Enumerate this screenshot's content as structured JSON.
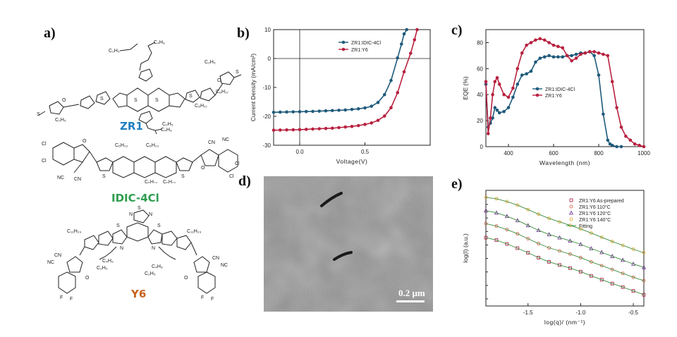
{
  "panels": {
    "a": {
      "label": "a)",
      "molecules": [
        {
          "name": "ZR1",
          "color": "#1f7fc0"
        },
        {
          "name": "IDIC-4Cl",
          "color": "#2e9e4f"
        },
        {
          "name": "Y6",
          "color": "#c8621e"
        }
      ],
      "atom_labels": {
        "zr1": [
          "C4H9",
          "C2H5",
          "S",
          "S",
          "S",
          "S",
          "S",
          "S",
          "S",
          "S",
          "S",
          "S",
          "S",
          "S",
          "O",
          "N",
          "C2H5",
          "C8H17",
          "C8H17",
          "C4H9",
          "C2H5",
          "S",
          "N",
          "C2H5",
          "O"
        ],
        "idic": [
          "Cl",
          "Cl",
          "O",
          "C6H13",
          "C6H13",
          "S",
          "S",
          "NC",
          "CN",
          "CN",
          "NC",
          "O",
          "Cl",
          "Cl",
          "C6H13",
          "C6H13"
        ],
        "y6": [
          "S",
          "N",
          "N",
          "S",
          "S",
          "S",
          "S",
          "C11H23",
          "C11H23",
          "N",
          "N",
          "C4H9",
          "C2H5",
          "C4H9",
          "C2H5",
          "NC",
          "CN",
          "CN",
          "NC",
          "O",
          "O",
          "F",
          "F",
          "F",
          "F"
        ]
      }
    },
    "b": {
      "label": "b)"
    },
    "c": {
      "label": "c)"
    },
    "d": {
      "label": "d)",
      "scale_bar": "0.2 μm"
    },
    "e": {
      "label": "e)"
    }
  },
  "chart_data": [
    {
      "id": "b",
      "type": "line",
      "xlabel": "Voltage(V)",
      "ylabel": "Current Density (mA/cm²)",
      "xlim": [
        -0.2,
        1.0
      ],
      "ylim": [
        -30,
        10
      ],
      "xticks": [
        {
          "v": 0.0,
          "t": "0.0"
        },
        {
          "v": 0.5,
          "t": "0.5"
        }
      ],
      "yticks": [
        {
          "v": 10,
          "t": "10"
        },
        {
          "v": 0,
          "t": "0"
        },
        {
          "v": -10,
          "t": "-10"
        },
        {
          "v": -20,
          "t": "-20"
        },
        {
          "v": -30,
          "t": "-30"
        }
      ],
      "zero_lines": true,
      "legend_position": "top",
      "series": [
        {
          "name": "ZR1:IDIC-4Cl",
          "color": "#1f5a7a",
          "marker": "circle",
          "x": [
            -0.2,
            -0.15,
            -0.1,
            -0.05,
            0.0,
            0.05,
            0.1,
            0.15,
            0.2,
            0.25,
            0.3,
            0.35,
            0.4,
            0.45,
            0.5,
            0.55,
            0.6,
            0.65,
            0.7,
            0.75,
            0.78,
            0.8,
            0.82
          ],
          "y": [
            -18.6,
            -18.55,
            -18.5,
            -18.45,
            -18.4,
            -18.35,
            -18.3,
            -18.2,
            -18.1,
            -18.0,
            -17.9,
            -17.8,
            -17.6,
            -17.4,
            -17.1,
            -16.5,
            -15.2,
            -12.5,
            -7.6,
            0.2,
            5.0,
            8.5,
            10
          ]
        },
        {
          "name": "ZR1:Y6",
          "color": "#b8213f",
          "marker": "circle",
          "x": [
            -0.2,
            -0.15,
            -0.1,
            -0.05,
            0.0,
            0.05,
            0.1,
            0.15,
            0.2,
            0.25,
            0.3,
            0.35,
            0.4,
            0.45,
            0.5,
            0.55,
            0.6,
            0.65,
            0.7,
            0.75,
            0.8,
            0.85,
            0.88,
            0.9
          ],
          "y": [
            -24.8,
            -24.75,
            -24.7,
            -24.65,
            -24.6,
            -24.5,
            -24.4,
            -24.3,
            -24.2,
            -24.1,
            -23.9,
            -23.7,
            -23.5,
            -23.2,
            -22.8,
            -22.3,
            -21.4,
            -19.9,
            -17.0,
            -11.8,
            -4.6,
            1.8,
            6.5,
            10
          ]
        }
      ]
    },
    {
      "id": "c",
      "type": "line",
      "xlabel": "Wavelength (nm)",
      "ylabel": "EQE (%)",
      "xlim": [
        300,
        1000
      ],
      "ylim": [
        0,
        90
      ],
      "xticks": [
        {
          "v": 400,
          "t": "400"
        },
        {
          "v": 600,
          "t": "600"
        },
        {
          "v": 800,
          "t": "800"
        },
        {
          "v": 1000,
          "t": "1000"
        }
      ],
      "yticks": [
        {
          "v": 0,
          "t": "0"
        },
        {
          "v": 20,
          "t": "20"
        },
        {
          "v": 40,
          "t": "40"
        },
        {
          "v": 60,
          "t": "60"
        },
        {
          "v": 80,
          "t": "80"
        }
      ],
      "legend_position": "middle-left",
      "series": [
        {
          "name": "ZR1:IDIC-4Cl",
          "color": "#1f5a7a",
          "marker": "circle",
          "x": [
            300,
            310,
            320,
            330,
            340,
            350,
            360,
            380,
            400,
            420,
            440,
            460,
            480,
            500,
            520,
            540,
            560,
            580,
            600,
            620,
            640,
            660,
            680,
            700,
            720,
            740,
            760,
            780,
            800,
            820,
            840,
            850,
            860,
            880,
            900
          ],
          "y": [
            48,
            15,
            18,
            22,
            30,
            28,
            26,
            27,
            30,
            38,
            48,
            55,
            56,
            58,
            65,
            68,
            69,
            70,
            69,
            69,
            69,
            70,
            70,
            71,
            72,
            72,
            73,
            70,
            55,
            25,
            5,
            2,
            1,
            0,
            0
          ]
        },
        {
          "name": "ZR1:Y6",
          "color": "#b8213f",
          "marker": "circle",
          "x": [
            300,
            310,
            320,
            330,
            340,
            350,
            360,
            380,
            400,
            420,
            440,
            460,
            480,
            500,
            520,
            540,
            560,
            580,
            600,
            620,
            640,
            660,
            680,
            700,
            720,
            740,
            760,
            780,
            800,
            820,
            840,
            860,
            880,
            900,
            920,
            940,
            960,
            980,
            1000
          ],
          "y": [
            50,
            10,
            22,
            40,
            50,
            53,
            48,
            40,
            38,
            45,
            60,
            72,
            78,
            80,
            82,
            83,
            82,
            80,
            78,
            77,
            76,
            70,
            66,
            68,
            71,
            72,
            73,
            73,
            72,
            71,
            70,
            50,
            30,
            15,
            8,
            5,
            2,
            1,
            0
          ]
        }
      ]
    },
    {
      "id": "e",
      "type": "scatter",
      "xlabel": "log(q)/ (nm⁻¹)",
      "ylabel": "log(I) (a.u.)",
      "xlim": [
        -1.9,
        -0.4
      ],
      "xticks": [
        {
          "v": -1.5,
          "t": "-1.5"
        },
        {
          "v": -1.0,
          "t": "-1.0"
        },
        {
          "v": -0.5,
          "t": "-0.5"
        }
      ],
      "legend_position": "top-right",
      "series": [
        {
          "name": "ZR1:Y6 As-prepared",
          "color": "#a8123a",
          "marker": "square",
          "x": [
            -1.9,
            -1.8,
            -1.7,
            -1.6,
            -1.5,
            -1.4,
            -1.3,
            -1.2,
            -1.1,
            -1.0,
            -0.9,
            -0.8,
            -0.7,
            -0.6,
            -0.5,
            -0.4
          ],
          "y": [
            6.15,
            6.08,
            5.97,
            5.85,
            5.72,
            5.58,
            5.46,
            5.37,
            5.28,
            5.18,
            5.06,
            4.95,
            4.84,
            4.74,
            4.63,
            4.52
          ]
        },
        {
          "name": "ZR1:Y6 110°C",
          "color": "#d2553a",
          "marker": "circle",
          "x": [
            -1.9,
            -1.8,
            -1.7,
            -1.6,
            -1.5,
            -1.4,
            -1.3,
            -1.2,
            -1.1,
            -1.0,
            -0.9,
            -0.8,
            -0.7,
            -0.6,
            -0.5,
            -0.4
          ],
          "y": [
            6.55,
            6.48,
            6.38,
            6.26,
            6.12,
            5.98,
            5.86,
            5.77,
            5.68,
            5.58,
            5.46,
            5.35,
            5.24,
            5.13,
            5.02,
            4.92
          ]
        },
        {
          "name": "ZR1:Y6 120°C",
          "color": "#6a2a8c",
          "marker": "triangle",
          "x": [
            -1.9,
            -1.8,
            -1.7,
            -1.6,
            -1.5,
            -1.4,
            -1.3,
            -1.2,
            -1.1,
            -1.0,
            -0.9,
            -0.8,
            -0.7,
            -0.6,
            -0.5,
            -0.4
          ],
          "y": [
            6.92,
            6.86,
            6.76,
            6.64,
            6.5,
            6.36,
            6.24,
            6.15,
            6.06,
            5.96,
            5.84,
            5.73,
            5.62,
            5.51,
            5.4,
            5.3
          ]
        },
        {
          "name": "ZR1:Y6 140°C",
          "color": "#e0a21a",
          "marker": "circle",
          "x": [
            -1.9,
            -1.8,
            -1.7,
            -1.6,
            -1.5,
            -1.4,
            -1.3,
            -1.2,
            -1.1,
            -1.0,
            -0.9,
            -0.8,
            -0.7,
            -0.6,
            -0.5,
            -0.4
          ],
          "y": [
            7.3,
            7.26,
            7.18,
            7.08,
            6.95,
            6.82,
            6.7,
            6.6,
            6.5,
            6.4,
            6.28,
            6.16,
            6.04,
            5.93,
            5.82,
            5.72
          ]
        }
      ],
      "fit": {
        "name": "Fitting",
        "color": "#3c8c3c"
      },
      "ylim": [
        4.2,
        7.5
      ]
    }
  ]
}
